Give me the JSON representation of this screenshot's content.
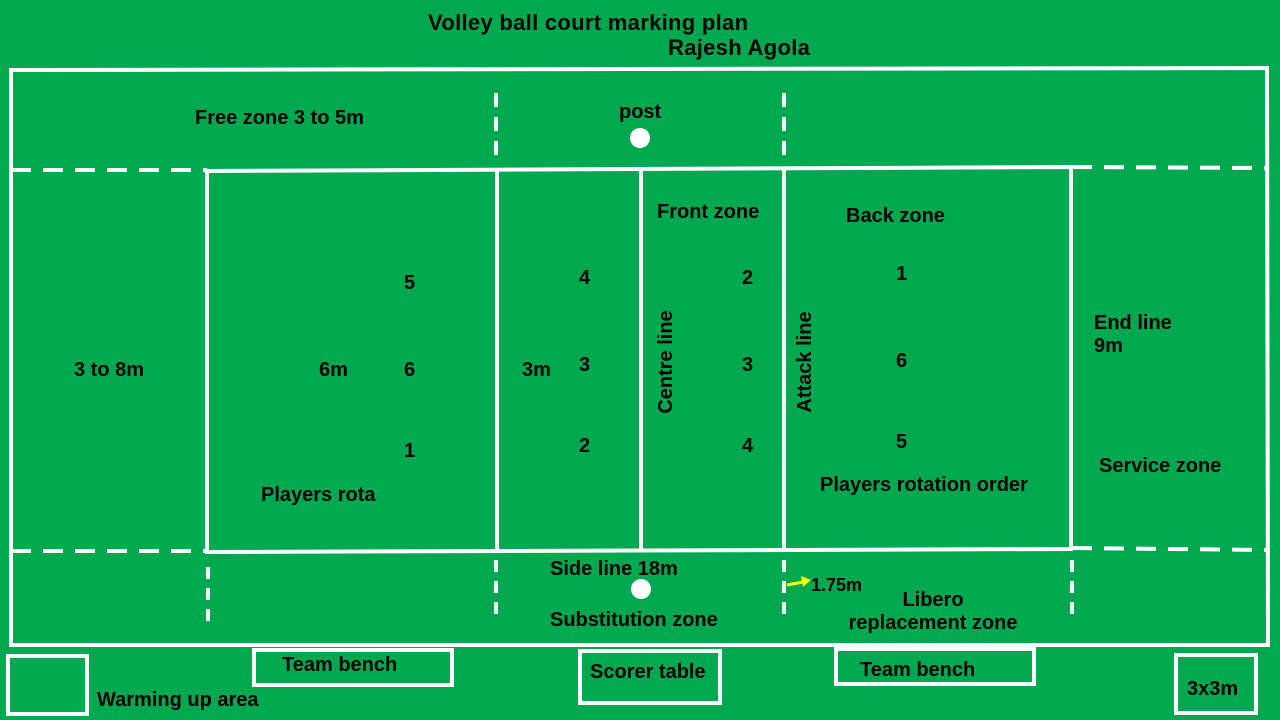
{
  "header": {
    "title": "Volley ball court marking plan",
    "author": "Rajesh Agola"
  },
  "zones": {
    "free_zone": "Free zone 3 to 5m",
    "post_label": "post",
    "left_margin": "3 to 8m",
    "six_m": "6m",
    "three_m": "3m",
    "front_zone": "Front zone",
    "back_zone": "Back zone",
    "centre_line": "Centre line",
    "attack_line": "Attack line",
    "end_line": "End line\n9m",
    "service_zone": "Service zone",
    "players_rota": "Players rota",
    "players_rotation_order": "Players rotation order",
    "side_line": "Side line 18m",
    "substitution_zone": "Substitution zone",
    "libero_distance": "1.75m",
    "libero_zone": "Libero\nreplacement zone"
  },
  "positions": {
    "left_back": [
      "5",
      "6",
      "1"
    ],
    "left_front": [
      "4",
      "3",
      "2"
    ],
    "right_front": [
      "2",
      "3",
      "4"
    ],
    "right_back": [
      "1",
      "6",
      "5"
    ]
  },
  "bottom": {
    "warming_up": "Warming up area",
    "team_bench_left": "Team bench",
    "scorer_table": "Scorer table",
    "team_bench_right": "Team bench",
    "corner_box": "3x3m"
  },
  "colors": {
    "background": "#00a94f",
    "lines": "#ffffff",
    "text": "#000000",
    "arrow": "#ffff00"
  }
}
